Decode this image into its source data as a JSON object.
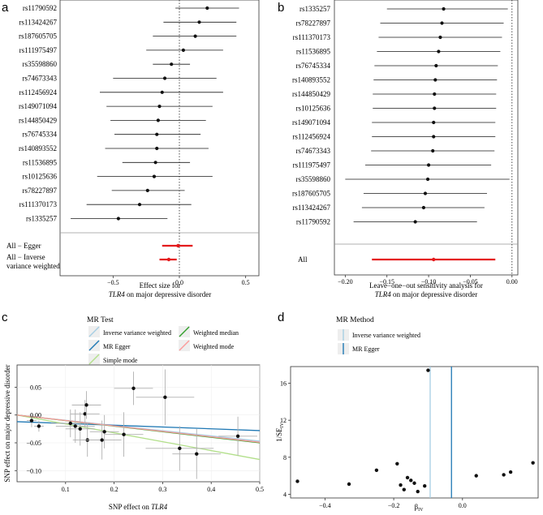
{
  "chart_data": [
    {
      "panel": "a",
      "type": "forest",
      "xlabel": "Effect size for",
      "xlabel_italic": "TLR4",
      "xlabel_suffix": "on major depressive disorder",
      "xlim": [
        -0.9,
        0.6
      ],
      "xticks": [
        -0.5,
        0.0,
        0.5
      ],
      "xtick_labels": [
        "−0.5",
        "0.0",
        "0.5"
      ],
      "snps": [
        {
          "name": "rs11790592",
          "est": 0.21,
          "lo": -0.03,
          "hi": 0.45
        },
        {
          "name": "rs113424267",
          "est": 0.15,
          "lo": -0.12,
          "hi": 0.43
        },
        {
          "name": "rs187605705",
          "est": 0.12,
          "lo": -0.2,
          "hi": 0.43
        },
        {
          "name": "rs111975497",
          "est": 0.03,
          "lo": -0.25,
          "hi": 0.33
        },
        {
          "name": "rs35598860",
          "est": -0.06,
          "lo": -0.2,
          "hi": 0.08
        },
        {
          "name": "rs74673343",
          "est": -0.11,
          "lo": -0.5,
          "hi": 0.28
        },
        {
          "name": "rs112456924",
          "est": -0.13,
          "lo": -0.6,
          "hi": 0.33
        },
        {
          "name": "rs149071094",
          "est": -0.15,
          "lo": -0.55,
          "hi": 0.25
        },
        {
          "name": "rs144850429",
          "est": -0.16,
          "lo": -0.52,
          "hi": 0.2
        },
        {
          "name": "rs76745334",
          "est": -0.17,
          "lo": -0.49,
          "hi": 0.16
        },
        {
          "name": "rs140893552",
          "est": -0.17,
          "lo": -0.56,
          "hi": 0.22
        },
        {
          "name": "rs11536895",
          "est": -0.18,
          "lo": -0.43,
          "hi": 0.08
        },
        {
          "name": "rs10125636",
          "est": -0.19,
          "lo": -0.62,
          "hi": 0.25
        },
        {
          "name": "rs78227897",
          "est": -0.24,
          "lo": -0.51,
          "hi": 0.04
        },
        {
          "name": "rs111370173",
          "est": -0.3,
          "lo": -0.7,
          "hi": 0.09
        },
        {
          "name": "rs1335257",
          "est": -0.46,
          "lo": -0.82,
          "hi": -0.09
        }
      ],
      "summary": [
        {
          "name": "All − Egger",
          "est": -0.01,
          "lo": -0.13,
          "hi": 0.1
        },
        {
          "name": "All − Inverse variance weighted",
          "line1": "All − Inverse",
          "line2": "variance weighted",
          "est": -0.08,
          "lo": -0.15,
          "hi": -0.02
        }
      ],
      "summary_color": "#e41a1c"
    },
    {
      "panel": "b",
      "type": "leave-one-out",
      "xlabel": "Leave−one−out sensitivity analysis for",
      "xlabel_italic": "TLR4",
      "xlabel_suffix": "on major depressive disorder",
      "xlim": [
        -0.213,
        0.007
      ],
      "xticks": [
        -0.2,
        -0.15,
        -0.1,
        -0.05,
        0.0
      ],
      "xtick_labels": [
        "−0.20",
        "−0.15",
        "−0.10",
        "−0.05",
        "0.00"
      ],
      "snps": [
        {
          "name": "rs1335257",
          "est": -0.082,
          "lo": -0.15,
          "hi": -0.005
        },
        {
          "name": "rs78227897",
          "est": -0.084,
          "lo": -0.158,
          "hi": -0.01
        },
        {
          "name": "rs111370173",
          "est": -0.086,
          "lo": -0.16,
          "hi": -0.012
        },
        {
          "name": "rs11536895",
          "est": -0.088,
          "lo": -0.162,
          "hi": -0.014
        },
        {
          "name": "rs76745334",
          "est": -0.091,
          "lo": -0.165,
          "hi": -0.017
        },
        {
          "name": "rs140893552",
          "est": -0.092,
          "lo": -0.166,
          "hi": -0.018
        },
        {
          "name": "rs144850429",
          "est": -0.093,
          "lo": -0.167,
          "hi": -0.019
        },
        {
          "name": "rs10125636",
          "est": -0.093,
          "lo": -0.167,
          "hi": -0.019
        },
        {
          "name": "rs149071094",
          "est": -0.094,
          "lo": -0.168,
          "hi": -0.02
        },
        {
          "name": "rs112456924",
          "est": -0.094,
          "lo": -0.168,
          "hi": -0.02
        },
        {
          "name": "rs74673343",
          "est": -0.095,
          "lo": -0.169,
          "hi": -0.021
        },
        {
          "name": "rs111975497",
          "est": -0.1,
          "lo": -0.176,
          "hi": -0.025
        },
        {
          "name": "rs35598860",
          "est": -0.101,
          "lo": -0.2,
          "hi": -0.003
        },
        {
          "name": "rs187605705",
          "est": -0.104,
          "lo": -0.178,
          "hi": -0.03
        },
        {
          "name": "rs113424267",
          "est": -0.106,
          "lo": -0.18,
          "hi": -0.033
        },
        {
          "name": "rs11790592",
          "est": -0.116,
          "lo": -0.19,
          "hi": -0.042
        }
      ],
      "summary": [
        {
          "name": "All",
          "est": -0.094,
          "lo": -0.168,
          "hi": -0.02
        }
      ],
      "summary_color": "#e41a1c"
    },
    {
      "panel": "c",
      "type": "scatter",
      "legend_title": "MR Test",
      "xlabel": "SNP effect on",
      "xlabel_italic": "TLR4",
      "ylabel": "SNP effect on major depressive disorder",
      "xlim": [
        0.0,
        0.5
      ],
      "ylim": [
        -0.12,
        0.09
      ],
      "xticks": [
        0.1,
        0.2,
        0.3,
        0.4,
        0.5
      ],
      "xtick_labels": [
        "0.1",
        "0.2",
        "0.3",
        "0.4",
        "0.5"
      ],
      "yticks": [
        -0.1,
        -0.05,
        0.0,
        0.05
      ],
      "ytick_labels": [
        "−0.10",
        "−0.05",
        "0.00",
        "0.05"
      ],
      "points": [
        {
          "x": 0.03,
          "y": -0.01,
          "xse": 0.01,
          "yse": 0.012
        },
        {
          "x": 0.045,
          "y": -0.02,
          "xse": 0.01,
          "yse": 0.01
        },
        {
          "x": 0.11,
          "y": -0.015,
          "xse": 0.04,
          "yse": 0.025
        },
        {
          "x": 0.12,
          "y": -0.02,
          "xse": 0.04,
          "yse": 0.03
        },
        {
          "x": 0.13,
          "y": -0.025,
          "xse": 0.03,
          "yse": 0.03
        },
        {
          "x": 0.14,
          "y": 0.002,
          "xse": 0.03,
          "yse": 0.025
        },
        {
          "x": 0.143,
          "y": 0.018,
          "xse": 0.03,
          "yse": 0.025
        },
        {
          "x": 0.145,
          "y": -0.045,
          "xse": 0.03,
          "yse": 0.03
        },
        {
          "x": 0.175,
          "y": -0.045,
          "xse": 0.04,
          "yse": 0.035
        },
        {
          "x": 0.18,
          "y": -0.03,
          "xse": 0.03,
          "yse": 0.03
        },
        {
          "x": 0.22,
          "y": -0.035,
          "xse": 0.04,
          "yse": 0.04
        },
        {
          "x": 0.24,
          "y": 0.048,
          "xse": 0.04,
          "yse": 0.03
        },
        {
          "x": 0.305,
          "y": 0.032,
          "xse": 0.06,
          "yse": 0.05
        },
        {
          "x": 0.335,
          "y": -0.06,
          "xse": 0.07,
          "yse": 0.04
        },
        {
          "x": 0.37,
          "y": -0.07,
          "xse": 0.05,
          "yse": 0.045
        },
        {
          "x": 0.455,
          "y": -0.038,
          "xse": 0.04,
          "yse": 0.035
        }
      ],
      "lines": [
        {
          "name": "Inverse variance weighted",
          "color": "#a6cee3",
          "slope": -0.094,
          "intercept": 0.0
        },
        {
          "name": "MR Egger",
          "color": "#1f78b4",
          "slope": -0.032,
          "intercept": -0.012
        },
        {
          "name": "Simple mode",
          "color": "#b2df8a",
          "slope": -0.16,
          "intercept": 0.0
        },
        {
          "name": "Weighted median",
          "color": "#33a02c",
          "slope": -0.1,
          "intercept": 0.0
        },
        {
          "name": "Weighted mode",
          "color": "#fb9a99",
          "slope": -0.098,
          "intercept": 0.0
        }
      ]
    },
    {
      "panel": "d",
      "type": "funnel",
      "legend_title": "MR Method",
      "xlabel": "β",
      "xlabel_sub": "IV",
      "ylabel": "1/SE",
      "ylabel_sub": "IV",
      "xlim": [
        -0.5,
        0.22
      ],
      "ylim": [
        3.6,
        17.8
      ],
      "xticks": [
        -0.4,
        -0.2,
        0.0
      ],
      "xtick_labels": [
        "−0.4",
        "−0.2",
        "0.0"
      ],
      "yticks": [
        4,
        8,
        12,
        16
      ],
      "ytick_labels": [
        "4",
        "8",
        "12",
        "16"
      ],
      "points": [
        {
          "x": -0.48,
          "y": 5.4
        },
        {
          "x": -0.33,
          "y": 5.1
        },
        {
          "x": -0.25,
          "y": 6.6
        },
        {
          "x": -0.19,
          "y": 7.3
        },
        {
          "x": -0.16,
          "y": 5.8
        },
        {
          "x": -0.18,
          "y": 5.0
        },
        {
          "x": -0.17,
          "y": 4.5
        },
        {
          "x": -0.15,
          "y": 5.5
        },
        {
          "x": -0.14,
          "y": 5.2
        },
        {
          "x": -0.13,
          "y": 4.3
        },
        {
          "x": -0.11,
          "y": 4.9
        },
        {
          "x": -0.1,
          "y": 17.4
        },
        {
          "x": 0.04,
          "y": 6.0
        },
        {
          "x": 0.12,
          "y": 6.1
        },
        {
          "x": 0.14,
          "y": 6.4
        },
        {
          "x": 0.205,
          "y": 7.4
        }
      ],
      "vlines": [
        {
          "name": "Inverse variance weighted",
          "color": "#a6cee3",
          "x": -0.094
        },
        {
          "name": "MR Egger",
          "color": "#1f78b4",
          "x": -0.032
        }
      ]
    }
  ]
}
